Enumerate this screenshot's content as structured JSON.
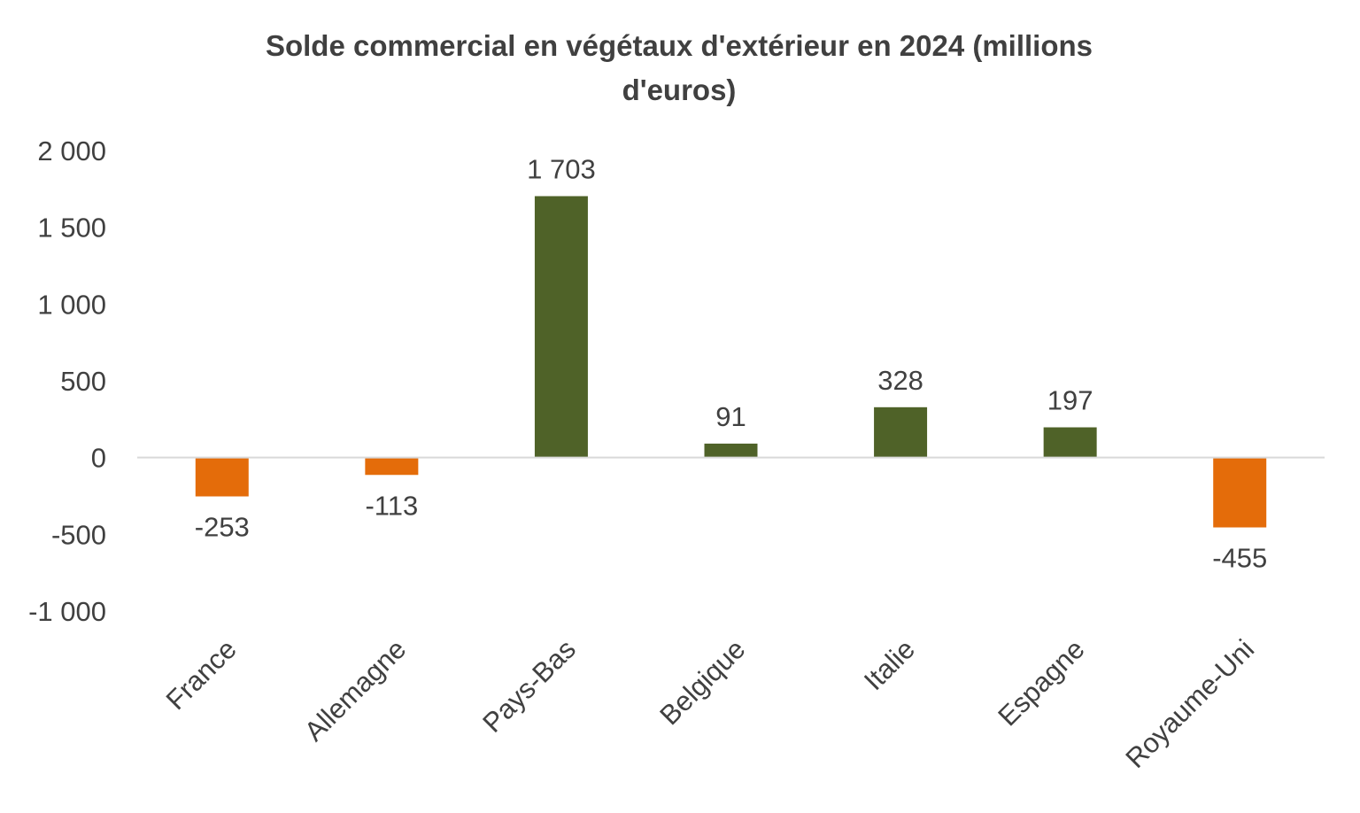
{
  "chart_data": {
    "type": "bar",
    "title": "Solde commercial en végétaux d'extérieur en 2024 (millions d'euros)",
    "title_lines": [
      "Solde commercial en végétaux d'extérieur en 2024 (millions",
      "d'euros)"
    ],
    "categories": [
      "France",
      "Allemagne",
      "Pays-Bas",
      "Belgique",
      "Italie",
      "Espagne",
      "Royaume-Uni"
    ],
    "values": [
      -253,
      -113,
      1703,
      91,
      328,
      197,
      -455
    ],
    "data_labels": [
      "-253",
      "-113",
      "1 703",
      "91",
      "328",
      "197",
      "-455"
    ],
    "y_ticks": [
      2000,
      1500,
      1000,
      500,
      0,
      -500,
      -1000
    ],
    "y_tick_labels": [
      "2 000",
      "1 500",
      "1 000",
      "500",
      "0",
      "-500",
      "-1 000"
    ],
    "ylim": [
      -1000,
      2000
    ],
    "xlabel": "",
    "ylabel": "",
    "grid": false,
    "legend": "none",
    "colors": {
      "positive": "#4f6228",
      "negative": "#e46c0a",
      "zero_line": "#d9d9d9",
      "text": "#404040"
    }
  }
}
